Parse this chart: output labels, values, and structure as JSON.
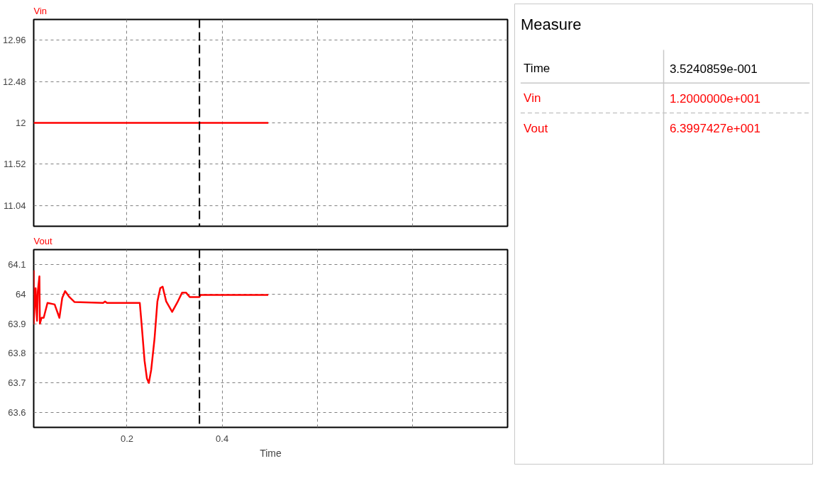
{
  "chart_data": [
    {
      "type": "line",
      "title": "Vin",
      "x": [
        0.004,
        0.497
      ],
      "series": [
        {
          "color": "#ff0000",
          "values": [
            12,
            12
          ]
        }
      ],
      "xlim": [
        0.004,
        1.0
      ],
      "xticks": [
        0.2,
        0.4,
        0.6,
        0.8
      ],
      "ylim": [
        10.8,
        13.2
      ],
      "yticks": [
        11.04,
        11.52,
        12,
        12.48,
        12.96
      ],
      "tick_labels": "y",
      "grid": true,
      "ref_lines": [
        {
          "axis": "x",
          "value": 0.35240859,
          "color": "#000000",
          "line_style": "dashed"
        }
      ]
    },
    {
      "type": "line",
      "title": "Vout",
      "xlabel": "Time",
      "x": [
        0.004,
        0.004,
        0.008,
        0.011,
        0.0127,
        0.016,
        0.017,
        0.0205,
        0.025,
        0.033,
        0.048,
        0.058,
        0.064,
        0.07,
        0.079,
        0.09,
        0.15,
        0.154,
        0.158,
        0.227,
        0.231,
        0.237,
        0.242,
        0.246,
        0.251,
        0.258,
        0.264,
        0.27,
        0.275,
        0.2825,
        0.295,
        0.306,
        0.316,
        0.324,
        0.332,
        0.352,
        0.355,
        0.497
      ],
      "series": [
        {
          "color": "#ff0000",
          "values": [
            64.08,
            63.9,
            64.02,
            63.91,
            64.01,
            64.06,
            63.9,
            63.92,
            63.92,
            63.97,
            63.965,
            63.92,
            63.987,
            64.01,
            63.99,
            63.973,
            63.97,
            63.975,
            63.97,
            63.97,
            63.895,
            63.775,
            63.715,
            63.7,
            63.745,
            63.85,
            63.975,
            64.02,
            64.025,
            63.975,
            63.94,
            63.972,
            64.005,
            64.005,
            63.99,
            63.99,
            63.997,
            63.997
          ]
        }
      ],
      "xlim": [
        0.004,
        1.0
      ],
      "xticks": [
        0.2,
        0.4,
        {
          "value": 0.6,
          "label": null
        },
        {
          "value": 0.8,
          "label": null
        }
      ],
      "ylim": [
        63.55,
        64.15
      ],
      "yticks": [
        63.6,
        63.7,
        63.8,
        63.9,
        64,
        64.1
      ],
      "grid": true,
      "ref_lines": [
        {
          "axis": "x",
          "value": 0.35240859,
          "color": "#000000",
          "line_style": "dashed"
        }
      ]
    },
    {
      "type": "other",
      "title": "Measure",
      "annotations": [
        "Time",
        "3.5240859e-001",
        "Vin",
        "1.2000000e+001",
        "Vout",
        "6.3997427e+001"
      ]
    }
  ]
}
